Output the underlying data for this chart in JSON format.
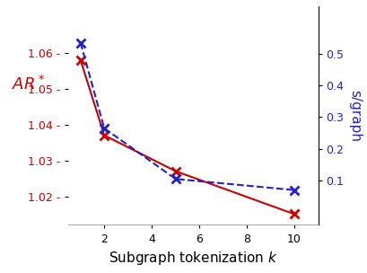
{
  "x": [
    1,
    2,
    5,
    10
  ],
  "red_y": [
    1.058,
    1.037,
    1.027,
    1.015
  ],
  "blue_y": [
    0.535,
    0.265,
    0.105,
    0.07
  ],
  "red_color": "#cc0000",
  "blue_color": "#2222cc",
  "red_ylabel": "$AR^*$",
  "blue_ylabel": "s/graph",
  "xlabel": "Subgraph tokenization $k$",
  "red_ylim": [
    1.012,
    1.073
  ],
  "blue_ylim": [
    -0.04,
    0.65
  ],
  "red_yticks": [
    1.02,
    1.03,
    1.04,
    1.05,
    1.06
  ],
  "blue_yticks": [
    0.1,
    0.2,
    0.3,
    0.4,
    0.5
  ],
  "xticks": [
    2,
    4,
    6,
    8,
    10
  ],
  "xlim": [
    0.5,
    11.0
  ]
}
